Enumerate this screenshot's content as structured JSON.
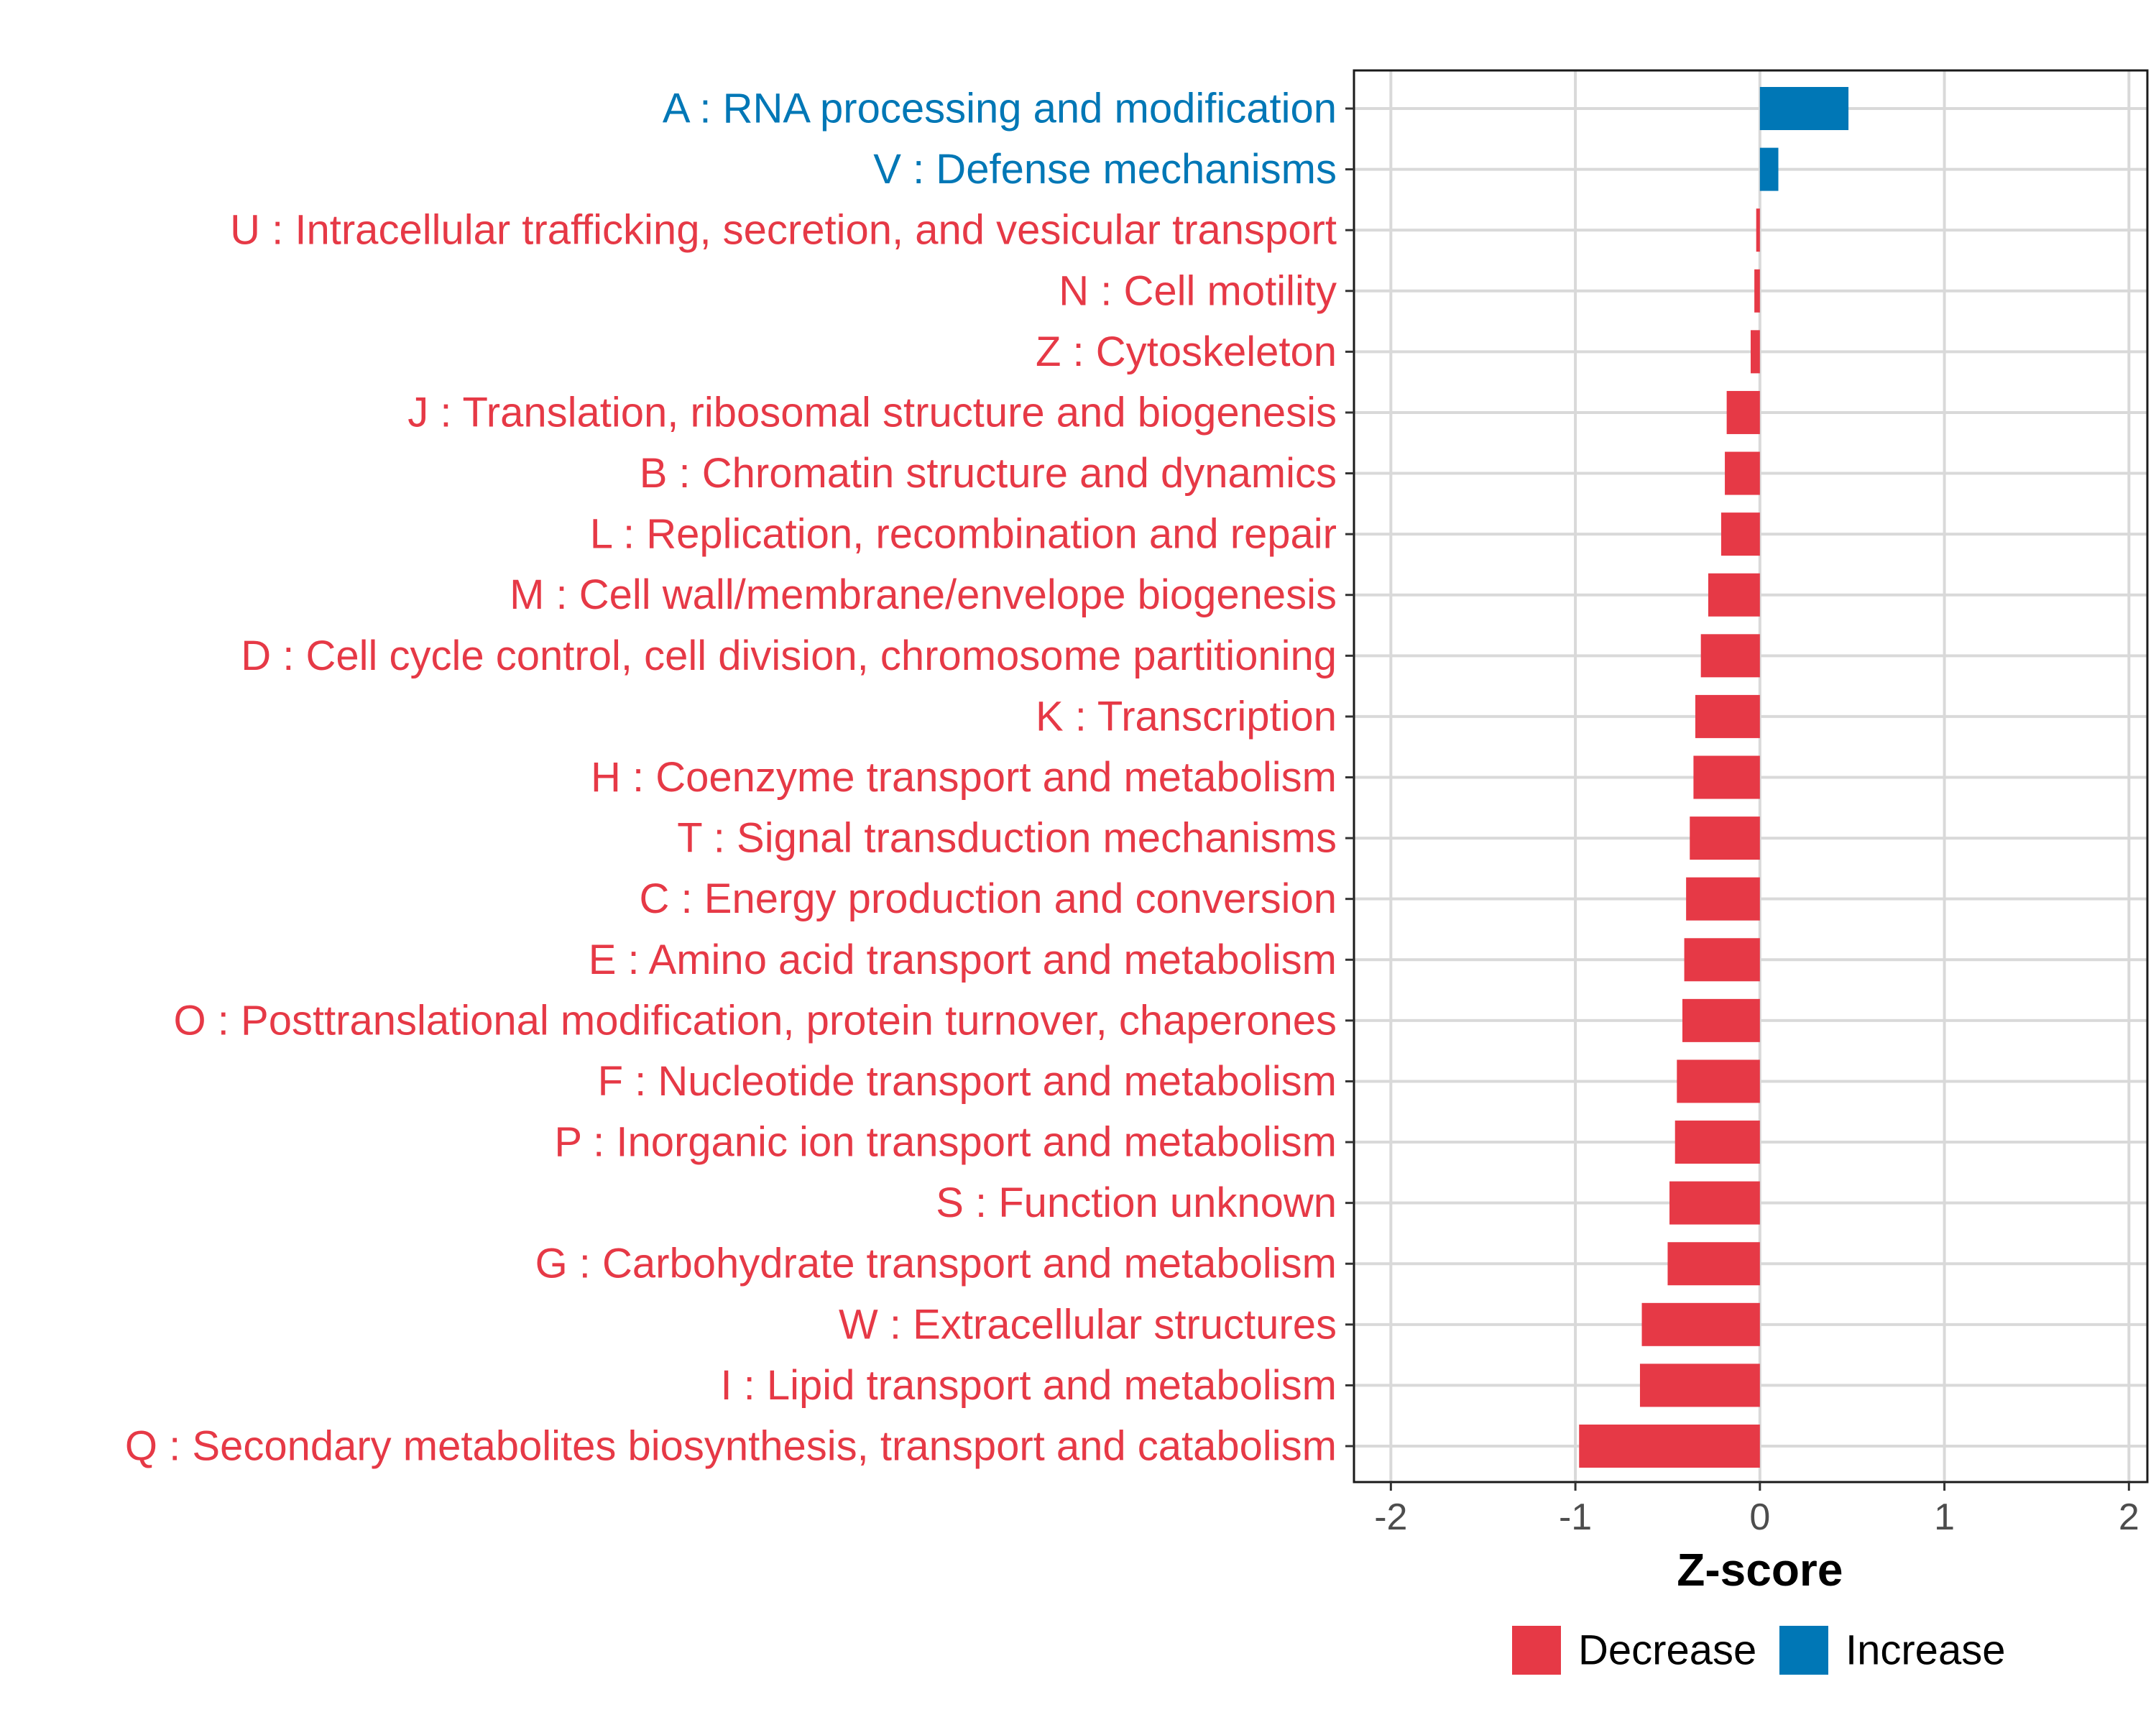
{
  "chart_data": {
    "type": "bar",
    "orientation": "horizontal",
    "title": "",
    "xlabel": "Z-score",
    "ylabel": "",
    "xlim": [
      -2.2,
      2.1
    ],
    "xticks": [
      -2,
      -1,
      0,
      1,
      2
    ],
    "xtick_labels": [
      "-2",
      "-1",
      "0",
      "1",
      "2"
    ],
    "grid": true,
    "legend_position": "bottom",
    "colors": {
      "Decrease": "#E63946",
      "Increase": "#0077B6"
    },
    "legend": [
      {
        "name": "Decrease",
        "color": "#E63946"
      },
      {
        "name": "Increase",
        "color": "#0077B6"
      }
    ],
    "categories": [
      "A : RNA processing and modification",
      "V : Defense mechanisms",
      "U : Intracellular trafficking, secretion, and vesicular transport",
      "N : Cell motility",
      "Z : Cytoskeleton",
      "J : Translation, ribosomal structure and biogenesis",
      "B : Chromatin structure and dynamics",
      "L : Replication, recombination and repair",
      "M : Cell wall/membrane/envelope biogenesis",
      "D : Cell cycle control, cell division, chromosome partitioning",
      "K : Transcription",
      "H : Coenzyme transport and metabolism",
      "T : Signal transduction mechanisms",
      "C : Energy production and conversion",
      "E : Amino acid transport and metabolism",
      "O : Posttranslational modification, protein turnover, chaperones",
      "F : Nucleotide transport and metabolism",
      "P : Inorganic ion transport and metabolism",
      "S : Function unknown",
      "G : Carbohydrate transport and metabolism",
      "W : Extracellular structures",
      "I : Lipid transport and metabolism",
      "Q : Secondary metabolites biosynthesis, transport and catabolism"
    ],
    "values": [
      0.48,
      0.1,
      -0.02,
      -0.03,
      -0.05,
      -0.18,
      -0.19,
      -0.21,
      -0.28,
      -0.32,
      -0.35,
      -0.36,
      -0.38,
      -0.4,
      -0.41,
      -0.42,
      -0.45,
      -0.46,
      -0.49,
      -0.5,
      -0.64,
      -0.65,
      -0.98
    ],
    "groups": [
      "Increase",
      "Increase",
      "Decrease",
      "Decrease",
      "Decrease",
      "Decrease",
      "Decrease",
      "Decrease",
      "Decrease",
      "Decrease",
      "Decrease",
      "Decrease",
      "Decrease",
      "Decrease",
      "Decrease",
      "Decrease",
      "Decrease",
      "Decrease",
      "Decrease",
      "Decrease",
      "Decrease",
      "Decrease",
      "Decrease"
    ]
  }
}
